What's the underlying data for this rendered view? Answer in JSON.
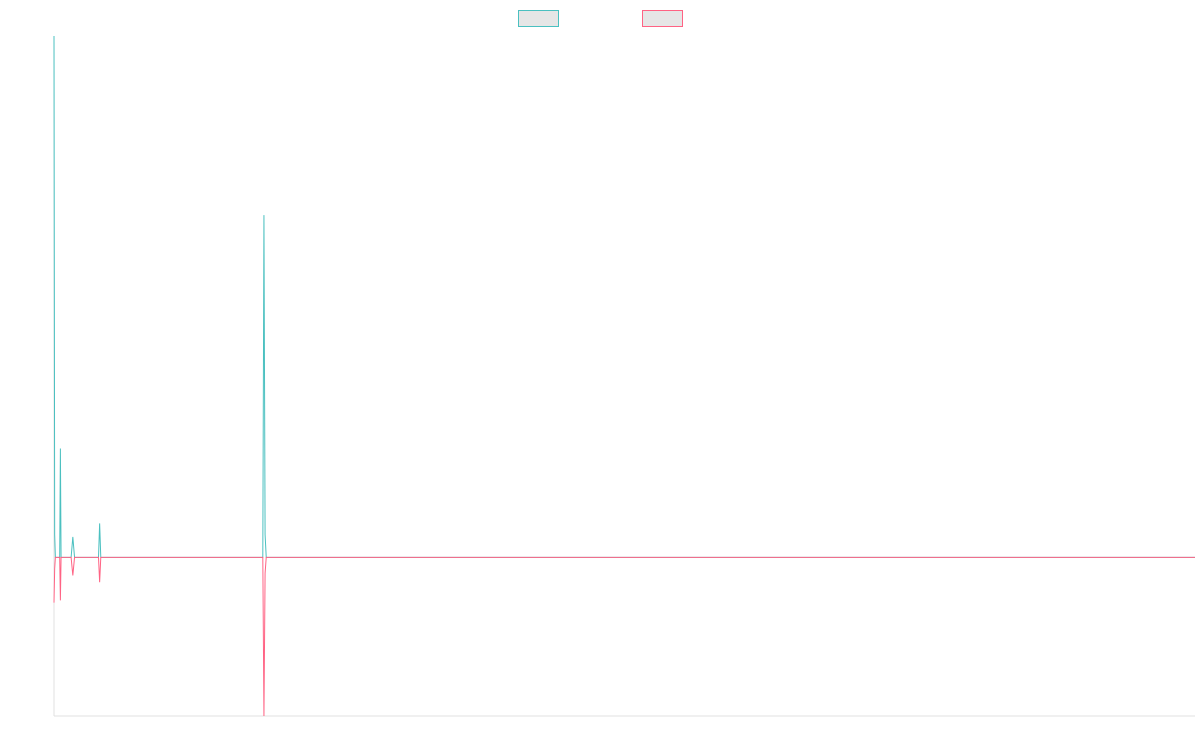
{
  "chart_data": {
    "type": "line",
    "title": "",
    "xlabel": "",
    "ylabel": "",
    "grid": false,
    "legend": "top-center",
    "xlim": [
      0,
      1000
    ],
    "ylim": [
      -7,
      23
    ],
    "series": [
      {
        "name": "",
        "color": "#4bc0c0",
        "points": [
          [
            0,
            23
          ],
          [
            0.6,
            1.0
          ],
          [
            1.2,
            0
          ],
          [
            5.0,
            0
          ],
          [
            5.6,
            4.8
          ],
          [
            6.2,
            0
          ],
          [
            15.0,
            0
          ],
          [
            16.5,
            0.9
          ],
          [
            18.0,
            0
          ],
          [
            39.0,
            0
          ],
          [
            40.0,
            1.5
          ],
          [
            41.0,
            0
          ],
          [
            183.0,
            0
          ],
          [
            184.0,
            15.1
          ],
          [
            185.0,
            1.0
          ],
          [
            186.0,
            0
          ],
          [
            1000.0,
            0
          ]
        ]
      },
      {
        "name": "",
        "color": "#ff6384",
        "points": [
          [
            0,
            -2.0
          ],
          [
            0.6,
            -0.5
          ],
          [
            1.2,
            0
          ],
          [
            5.0,
            0
          ],
          [
            5.6,
            -1.9
          ],
          [
            6.2,
            0
          ],
          [
            15.0,
            0
          ],
          [
            16.5,
            -0.8
          ],
          [
            18.0,
            0
          ],
          [
            39.0,
            0
          ],
          [
            40.0,
            -1.1
          ],
          [
            41.0,
            0
          ],
          [
            183.0,
            0
          ],
          [
            184.0,
            -7.0
          ],
          [
            185.0,
            -0.7
          ],
          [
            186.0,
            0
          ],
          [
            1000.0,
            0
          ]
        ]
      }
    ]
  }
}
